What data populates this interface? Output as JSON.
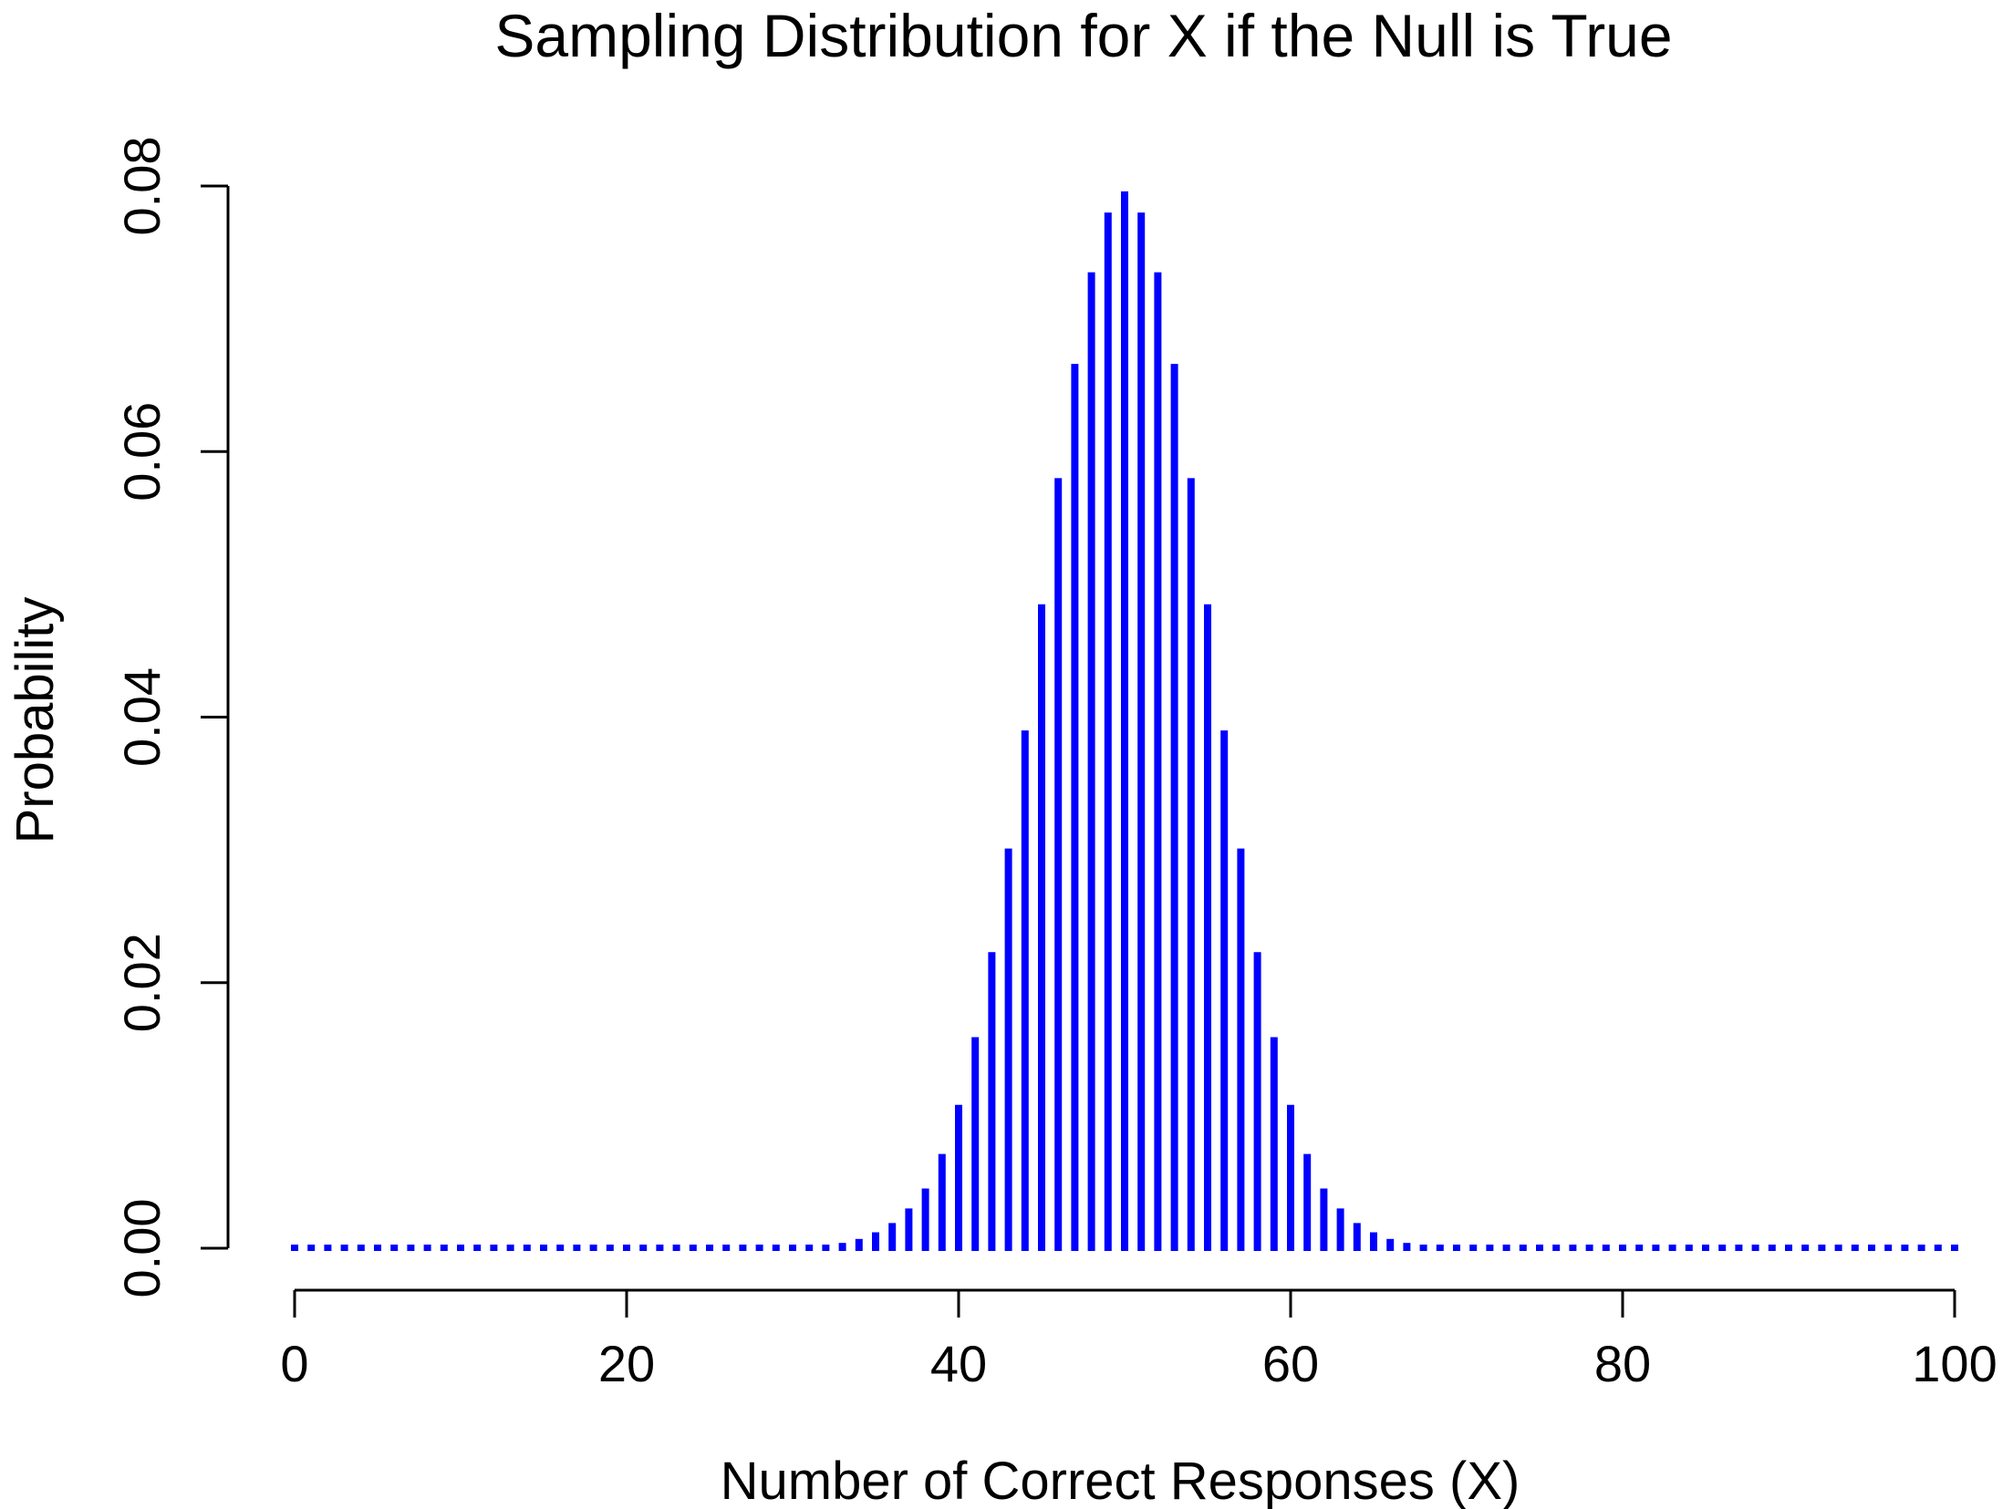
{
  "chart_data": {
    "type": "bar",
    "style": "vertical-lines",
    "title": "Sampling Distribution for X if the Null is True",
    "xlabel": "Number of Correct Responses (X)",
    "ylabel": "Probability",
    "xlim": [
      0,
      100
    ],
    "ylim": [
      0,
      0.08
    ],
    "xticks": [
      "0",
      "20",
      "40",
      "60",
      "80",
      "100"
    ],
    "yticks": [
      "0.00",
      "0.02",
      "0.04",
      "0.06",
      "0.08"
    ],
    "grid": false,
    "legend": "none",
    "color": "#0000ff",
    "x": [
      0,
      1,
      2,
      3,
      4,
      5,
      6,
      7,
      8,
      9,
      10,
      11,
      12,
      13,
      14,
      15,
      16,
      17,
      18,
      19,
      20,
      21,
      22,
      23,
      24,
      25,
      26,
      27,
      28,
      29,
      30,
      31,
      32,
      33,
      34,
      35,
      36,
      37,
      38,
      39,
      40,
      41,
      42,
      43,
      44,
      45,
      46,
      47,
      48,
      49,
      50,
      51,
      52,
      53,
      54,
      55,
      56,
      57,
      58,
      59,
      60,
      61,
      62,
      63,
      64,
      65,
      66,
      67,
      68,
      69,
      70,
      71,
      72,
      73,
      74,
      75,
      76,
      77,
      78,
      79,
      80,
      81,
      82,
      83,
      84,
      85,
      86,
      87,
      88,
      89,
      90,
      91,
      92,
      93,
      94,
      95,
      96,
      97,
      98,
      99,
      100
    ],
    "values": [
      0,
      0,
      0,
      0,
      0,
      0,
      0,
      0,
      0,
      0,
      0,
      0,
      0,
      0,
      0,
      0,
      0,
      0,
      0,
      0,
      0,
      0,
      0,
      0,
      0,
      0,
      0,
      0,
      0,
      0,
      0,
      0.0001,
      0.0002,
      0.0004,
      0.0007,
      0.0012,
      0.0019,
      0.003,
      0.0045,
      0.0071,
      0.0108,
      0.0159,
      0.0223,
      0.0301,
      0.039,
      0.0485,
      0.058,
      0.0666,
      0.0735,
      0.078,
      0.0796,
      0.078,
      0.0735,
      0.0666,
      0.058,
      0.0485,
      0.039,
      0.0301,
      0.0223,
      0.0159,
      0.0108,
      0.0071,
      0.0045,
      0.003,
      0.0019,
      0.0012,
      0.0007,
      0.0004,
      0.0002,
      0.0001,
      0,
      0,
      0,
      0,
      0,
      0,
      0,
      0,
      0,
      0,
      0,
      0,
      0,
      0,
      0,
      0,
      0,
      0,
      0,
      0,
      0,
      0,
      0,
      0,
      0,
      0,
      0,
      0,
      0,
      0,
      0
    ]
  }
}
